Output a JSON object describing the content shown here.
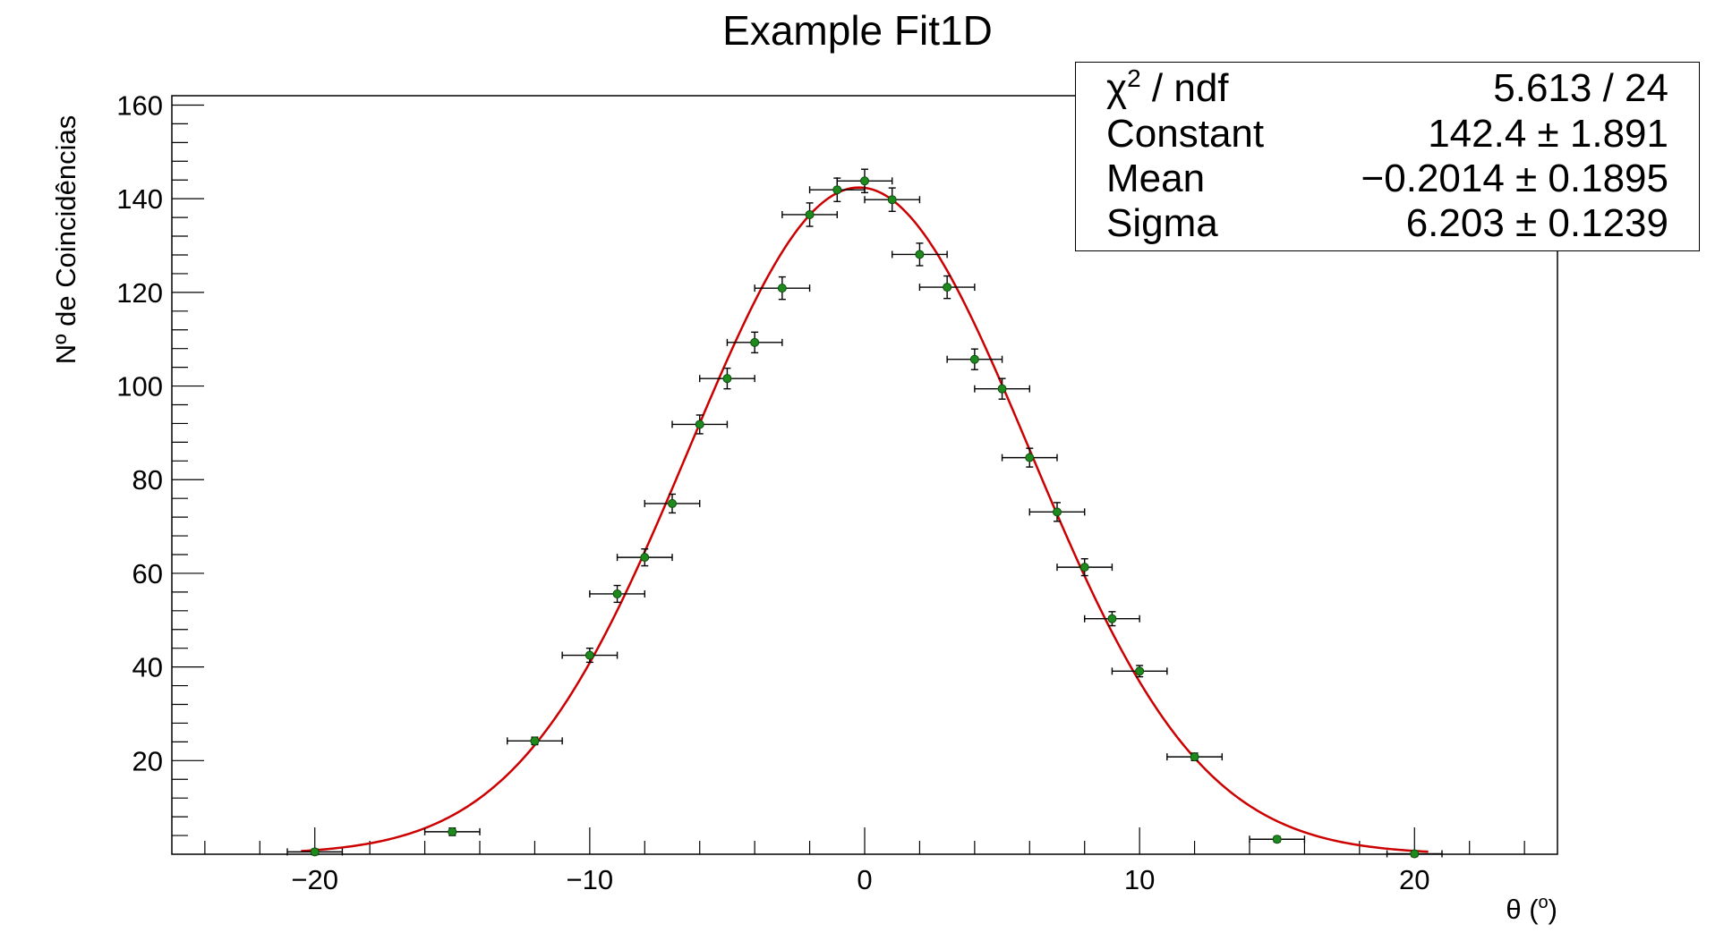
{
  "colors": {
    "points": "#1e8a1e",
    "fit": "#cc0000",
    "axes": "#000000",
    "error_bars": "#000000"
  },
  "chart_data": {
    "type": "scatter",
    "title": "Example Fit1D",
    "xlabel": "θ (",
    "xlabel_sup": "o",
    "xlabel_close": ")",
    "ylabel": "Nº de Coincidências",
    "xlim": [
      -25.2,
      25.2
    ],
    "ylim": [
      0,
      162
    ],
    "x_ticks": [
      -20,
      -10,
      0,
      10,
      20
    ],
    "x_tick_labels": [
      "−20",
      "−10",
      "0",
      "10",
      "20"
    ],
    "y_ticks": [
      20,
      40,
      60,
      80,
      100,
      120,
      140,
      160
    ],
    "y_tick_labels": [
      "20",
      "40",
      "60",
      "80",
      "100",
      "120",
      "140",
      "160"
    ],
    "grid": false,
    "series": [
      {
        "kind": "points-with-errors",
        "points": [
          {
            "x": -20,
            "y": 0.5,
            "xerr": 1,
            "yerr": 0.6
          },
          {
            "x": -15,
            "y": 4.8,
            "xerr": 1,
            "yerr": 0.8
          },
          {
            "x": -12,
            "y": 24.2,
            "xerr": 1,
            "yerr": 0.8
          },
          {
            "x": -10,
            "y": 42.5,
            "xerr": 1,
            "yerr": 1.5
          },
          {
            "x": -9,
            "y": 55.6,
            "xerr": 1,
            "yerr": 1.8
          },
          {
            "x": -8,
            "y": 63.4,
            "xerr": 1,
            "yerr": 1.8
          },
          {
            "x": -7,
            "y": 74.9,
            "xerr": 1,
            "yerr": 2.0
          },
          {
            "x": -6,
            "y": 91.8,
            "xerr": 1,
            "yerr": 2.0
          },
          {
            "x": -5,
            "y": 101.6,
            "xerr": 1,
            "yerr": 2.2
          },
          {
            "x": -4,
            "y": 109.3,
            "xerr": 1,
            "yerr": 2.2
          },
          {
            "x": -3,
            "y": 120.9,
            "xerr": 1,
            "yerr": 2.4
          },
          {
            "x": -2,
            "y": 136.6,
            "xerr": 1,
            "yerr": 2.5
          },
          {
            "x": -1,
            "y": 141.9,
            "xerr": 1,
            "yerr": 2.5
          },
          {
            "x": 0,
            "y": 143.8,
            "xerr": 1,
            "yerr": 2.5
          },
          {
            "x": 1,
            "y": 139.8,
            "xerr": 1,
            "yerr": 2.5
          },
          {
            "x": 2,
            "y": 128.1,
            "xerr": 1,
            "yerr": 2.4
          },
          {
            "x": 3,
            "y": 121.1,
            "xerr": 1,
            "yerr": 2.4
          },
          {
            "x": 4,
            "y": 105.7,
            "xerr": 1,
            "yerr": 2.2
          },
          {
            "x": 5,
            "y": 99.4,
            "xerr": 1,
            "yerr": 2.2
          },
          {
            "x": 6,
            "y": 84.7,
            "xerr": 1,
            "yerr": 2.0
          },
          {
            "x": 7,
            "y": 73.1,
            "xerr": 1,
            "yerr": 2.0
          },
          {
            "x": 8,
            "y": 61.3,
            "xerr": 1,
            "yerr": 1.8
          },
          {
            "x": 9,
            "y": 50.3,
            "xerr": 1,
            "yerr": 1.5
          },
          {
            "x": 10,
            "y": 39.1,
            "xerr": 1,
            "yerr": 1.2
          },
          {
            "x": 12,
            "y": 20.8,
            "xerr": 1,
            "yerr": 0.8
          },
          {
            "x": 15,
            "y": 3.2,
            "xerr": 1,
            "yerr": 0.6
          },
          {
            "x": 20,
            "y": 0.1,
            "xerr": 1,
            "yerr": 0.6
          }
        ]
      },
      {
        "kind": "gaussian-fit",
        "constant": 142.4,
        "mean": -0.2014,
        "sigma": 6.203,
        "x_range": [
          -20.5,
          20.5
        ]
      }
    ],
    "stats": {
      "chi2_label": "χ",
      "chi2_sup": "2",
      "chi2_suffix": " / ndf",
      "chi2_value": "5.613 / 24",
      "constant_label": "Constant",
      "constant_value": "142.4 ± 1.891",
      "mean_label": "Mean",
      "mean_value": "−0.2014 ± 0.1895",
      "sigma_label": "Sigma",
      "sigma_value": "6.203 ± 0.1239"
    }
  }
}
